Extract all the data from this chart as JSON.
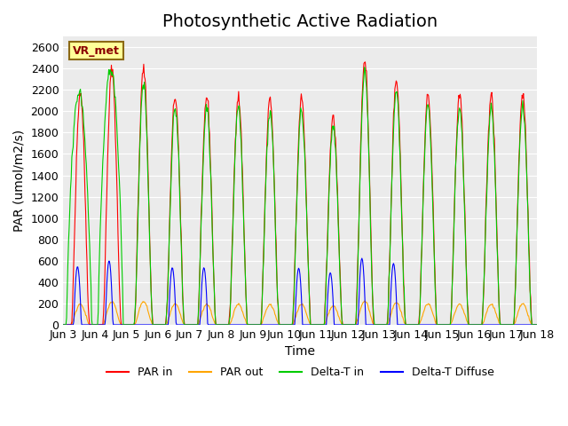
{
  "title": "Photosynthetic Active Radiation",
  "xlabel": "Time",
  "ylabel": "PAR (umol/m2/s)",
  "ylim": [
    0,
    2700
  ],
  "yticks": [
    0,
    200,
    400,
    600,
    800,
    1000,
    1200,
    1400,
    1600,
    1800,
    2000,
    2200,
    2400,
    2600
  ],
  "annotation_text": "VR_met",
  "legend_labels": [
    "PAR in",
    "PAR out",
    "Delta-T in",
    "Delta-T Diffuse"
  ],
  "legend_colors": [
    "#ff0000",
    "#ffa500",
    "#00cc00",
    "#0000ff"
  ],
  "line_colors": {
    "par_in": "#ff0000",
    "par_out": "#ffa500",
    "delta_t_in": "#00cc00",
    "delta_t_diffuse": "#0000ff"
  },
  "background_color": "#e8e8e8",
  "plot_bg_color": "#f0f0f0",
  "xtick_labels": [
    "Jun 3",
    "Jun 4",
    "Jun 5",
    "Jun 6",
    "Jun 7",
    "Jun 8",
    "Jun 9",
    "Jun 10",
    "Jun 11",
    "Jun 12",
    "Jun 13",
    "Jun 14",
    "Jun 15",
    "Jun 16",
    "Jun 17",
    "Jun 18"
  ],
  "title_fontsize": 14,
  "axis_label_fontsize": 10,
  "tick_fontsize": 9
}
